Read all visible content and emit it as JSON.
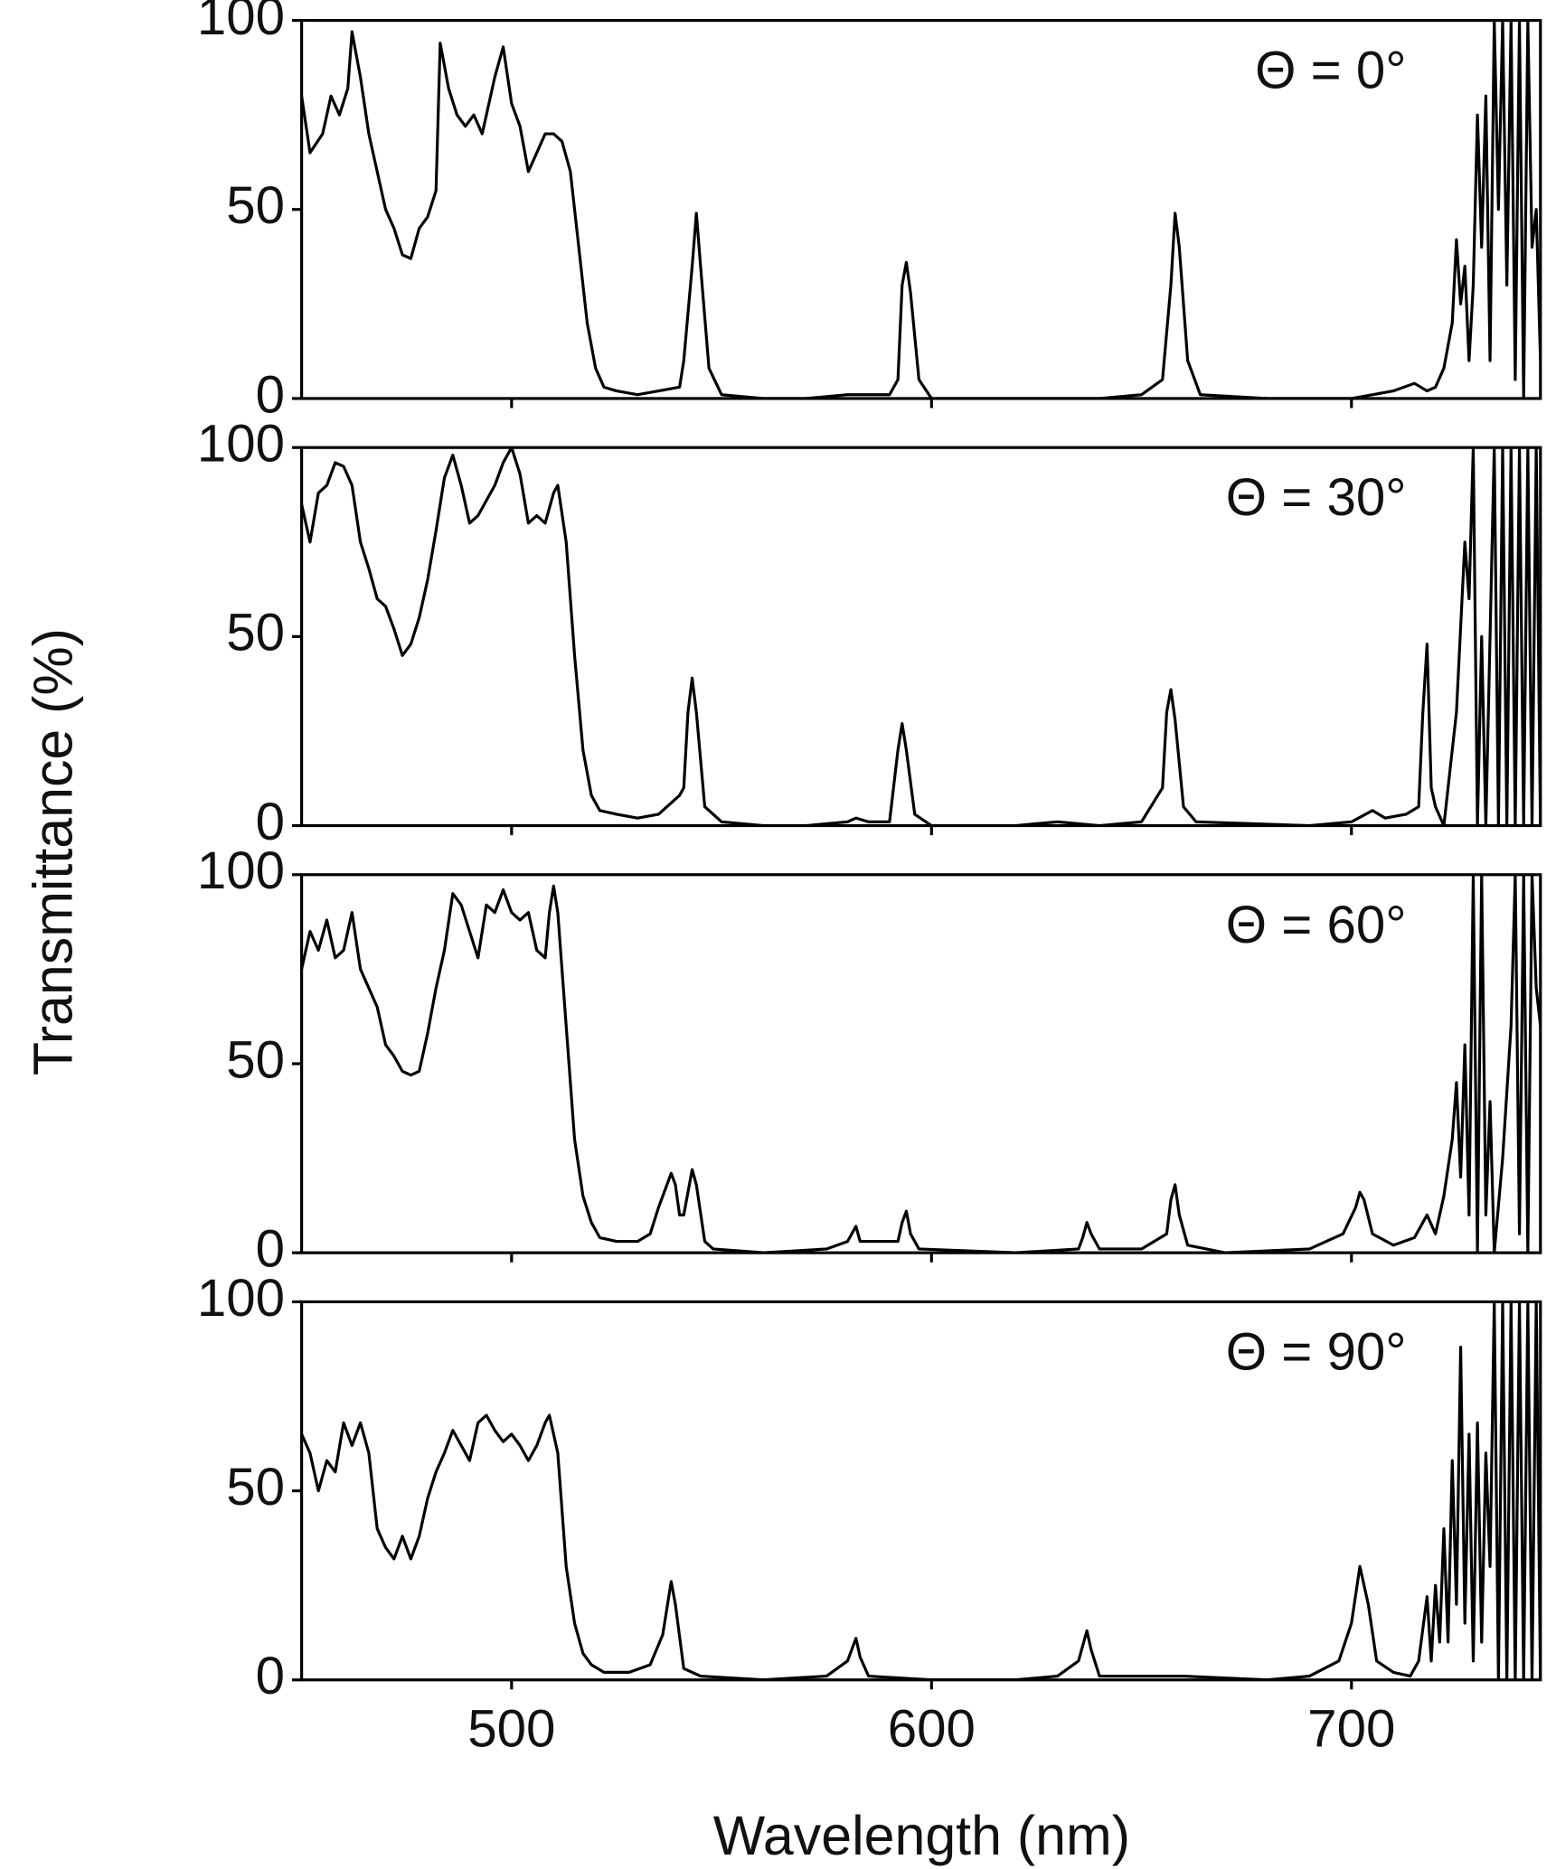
{
  "y_label": "Transmittance (%)",
  "x_label": "Wavelength (nm)",
  "chart_data": [
    {
      "type": "line",
      "annotation": "Θ = 0°",
      "color": "#000000",
      "xlim": [
        450,
        745
      ],
      "xticks": [
        500,
        600,
        700
      ],
      "ylim": [
        0,
        100
      ],
      "yticks": [
        0,
        50,
        100
      ],
      "x": [
        450,
        452,
        455,
        457,
        459,
        461,
        462,
        464,
        466,
        468,
        470,
        472,
        474,
        476,
        478,
        480,
        482,
        483,
        485,
        487,
        489,
        491,
        493,
        496,
        498,
        500,
        502,
        504,
        506,
        508,
        510,
        512,
        514,
        516,
        518,
        520,
        522,
        525,
        530,
        535,
        540,
        541,
        543,
        544,
        545,
        547,
        550,
        560,
        570,
        580,
        590,
        592,
        593,
        594,
        595,
        597,
        600,
        620,
        640,
        650,
        655,
        657,
        658,
        659,
        661,
        664,
        680,
        700,
        710,
        715,
        718,
        720,
        722,
        724,
        725,
        726,
        727,
        728,
        729,
        730,
        731,
        732,
        733,
        734,
        735,
        736,
        737,
        738,
        739,
        740,
        741,
        742,
        743,
        744,
        745
      ],
      "values": [
        80,
        65,
        70,
        80,
        75,
        82,
        97,
        85,
        70,
        60,
        50,
        45,
        38,
        37,
        45,
        48,
        55,
        94,
        82,
        75,
        72,
        75,
        70,
        85,
        93,
        78,
        72,
        60,
        65,
        70,
        70,
        68,
        60,
        40,
        20,
        8,
        3,
        2,
        1,
        2,
        3,
        10,
        35,
        49,
        35,
        8,
        1,
        0,
        0,
        1,
        1,
        5,
        30,
        36,
        28,
        5,
        0,
        0,
        0,
        1,
        5,
        30,
        49,
        40,
        10,
        1,
        0,
        0,
        2,
        4,
        2,
        3,
        8,
        20,
        42,
        25,
        35,
        10,
        30,
        75,
        40,
        80,
        10,
        100,
        50,
        100,
        30,
        100,
        5,
        100,
        0,
        100,
        40,
        50,
        10
      ]
    },
    {
      "type": "line",
      "annotation": "Θ = 30°",
      "color": "#000000",
      "xlim": [
        450,
        745
      ],
      "xticks": [
        500,
        600,
        700
      ],
      "ylim": [
        0,
        100
      ],
      "yticks": [
        0,
        50,
        100
      ],
      "x": [
        450,
        452,
        454,
        456,
        458,
        460,
        462,
        464,
        466,
        468,
        470,
        472,
        474,
        476,
        478,
        480,
        482,
        484,
        486,
        488,
        490,
        492,
        494,
        496,
        498,
        500,
        502,
        504,
        506,
        508,
        510,
        511,
        513,
        515,
        517,
        519,
        521,
        525,
        530,
        535,
        538,
        540,
        541,
        542,
        543,
        544,
        546,
        550,
        560,
        570,
        580,
        582,
        585,
        590,
        592,
        593,
        594,
        596,
        600,
        620,
        630,
        640,
        650,
        655,
        656,
        657,
        658,
        660,
        663,
        690,
        700,
        705,
        708,
        713,
        716,
        717,
        718,
        719,
        720,
        722,
        723,
        725,
        727,
        728,
        729,
        730,
        731,
        732,
        734,
        735,
        736,
        737,
        738,
        739,
        740,
        741,
        742,
        743,
        744,
        745
      ],
      "values": [
        85,
        75,
        88,
        90,
        96,
        95,
        90,
        75,
        68,
        60,
        58,
        52,
        45,
        48,
        55,
        65,
        78,
        92,
        98,
        90,
        80,
        82,
        86,
        90,
        96,
        100,
        93,
        80,
        82,
        80,
        88,
        90,
        75,
        45,
        20,
        8,
        4,
        3,
        2,
        3,
        6,
        8,
        10,
        30,
        39,
        30,
        5,
        1,
        0,
        0,
        1,
        2,
        1,
        1,
        20,
        27,
        20,
        3,
        0,
        0,
        1,
        0,
        1,
        10,
        30,
        36,
        28,
        5,
        1,
        0,
        1,
        4,
        2,
        3,
        5,
        30,
        48,
        10,
        5,
        0,
        10,
        30,
        75,
        60,
        100,
        0,
        50,
        0,
        100,
        0,
        100,
        0,
        100,
        0,
        100,
        0,
        100,
        0,
        100,
        0
      ]
    },
    {
      "type": "line",
      "annotation": "Θ = 60°",
      "color": "#000000",
      "xlim": [
        450,
        745
      ],
      "xticks": [
        500,
        600,
        700
      ],
      "ylim": [
        0,
        100
      ],
      "yticks": [
        0,
        50,
        100
      ],
      "x": [
        450,
        452,
        454,
        456,
        458,
        460,
        462,
        464,
        466,
        468,
        470,
        472,
        474,
        476,
        478,
        480,
        482,
        484,
        486,
        488,
        490,
        492,
        494,
        496,
        498,
        500,
        502,
        504,
        506,
        508,
        509,
        510,
        511,
        513,
        515,
        517,
        519,
        521,
        525,
        530,
        533,
        535,
        538,
        539,
        540,
        541,
        543,
        544,
        546,
        548,
        560,
        575,
        580,
        581,
        582,
        583,
        592,
        593,
        594,
        595,
        597,
        620,
        635,
        636,
        637,
        638,
        640,
        650,
        656,
        657,
        658,
        659,
        661,
        670,
        690,
        698,
        701,
        702,
        703,
        705,
        710,
        715,
        718,
        720,
        722,
        724,
        725,
        726,
        727,
        728,
        729,
        730,
        731,
        732,
        733,
        734,
        736,
        738,
        739,
        740,
        741,
        742,
        743,
        744,
        745
      ],
      "values": [
        75,
        85,
        80,
        88,
        78,
        80,
        90,
        75,
        70,
        65,
        55,
        52,
        48,
        47,
        48,
        58,
        70,
        80,
        95,
        92,
        85,
        78,
        92,
        90,
        96,
        90,
        88,
        90,
        80,
        78,
        90,
        97,
        90,
        60,
        30,
        15,
        8,
        4,
        3,
        3,
        5,
        12,
        21,
        18,
        10,
        10,
        22,
        18,
        3,
        1,
        0,
        1,
        3,
        5,
        7,
        3,
        3,
        8,
        11,
        5,
        1,
        0,
        1,
        4,
        8,
        5,
        1,
        1,
        5,
        14,
        18,
        10,
        2,
        0,
        1,
        5,
        12,
        16,
        14,
        5,
        2,
        4,
        10,
        5,
        15,
        30,
        45,
        20,
        55,
        10,
        100,
        0,
        100,
        10,
        40,
        0,
        25,
        60,
        100,
        5,
        100,
        0,
        100,
        70,
        60
      ]
    },
    {
      "type": "line",
      "annotation": "Θ = 90°",
      "color": "#000000",
      "xlim": [
        450,
        745
      ],
      "xticks": [
        500,
        600,
        700
      ],
      "ylim": [
        0,
        100
      ],
      "yticks": [
        0,
        50,
        100
      ],
      "x": [
        450,
        452,
        454,
        456,
        458,
        460,
        462,
        464,
        466,
        468,
        470,
        472,
        474,
        476,
        478,
        480,
        482,
        484,
        486,
        488,
        490,
        492,
        494,
        496,
        498,
        500,
        502,
        504,
        506,
        508,
        509,
        511,
        513,
        515,
        517,
        519,
        522,
        528,
        533,
        536,
        538,
        539,
        541,
        545,
        560,
        575,
        580,
        582,
        583,
        585,
        600,
        620,
        630,
        635,
        637,
        638,
        640,
        660,
        680,
        690,
        697,
        700,
        702,
        704,
        706,
        710,
        714,
        716,
        718,
        719,
        720,
        721,
        722,
        723,
        724,
        725,
        726,
        727,
        728,
        729,
        730,
        731,
        732,
        733,
        734,
        735,
        736,
        737,
        738,
        739,
        740,
        741,
        742,
        743,
        744,
        745
      ],
      "values": [
        65,
        60,
        50,
        58,
        55,
        68,
        62,
        68,
        60,
        40,
        35,
        32,
        38,
        32,
        38,
        48,
        55,
        60,
        66,
        62,
        58,
        68,
        70,
        66,
        63,
        65,
        62,
        58,
        62,
        68,
        70,
        60,
        30,
        15,
        7,
        4,
        2,
        2,
        4,
        12,
        26,
        20,
        3,
        1,
        0,
        1,
        5,
        11,
        6,
        1,
        0,
        0,
        1,
        5,
        13,
        8,
        1,
        1,
        0,
        1,
        5,
        15,
        30,
        20,
        5,
        2,
        1,
        5,
        22,
        5,
        25,
        10,
        40,
        10,
        58,
        20,
        88,
        15,
        65,
        5,
        68,
        10,
        60,
        30,
        100,
        0,
        100,
        0,
        100,
        0,
        100,
        0,
        100,
        0,
        100,
        0
      ]
    }
  ]
}
